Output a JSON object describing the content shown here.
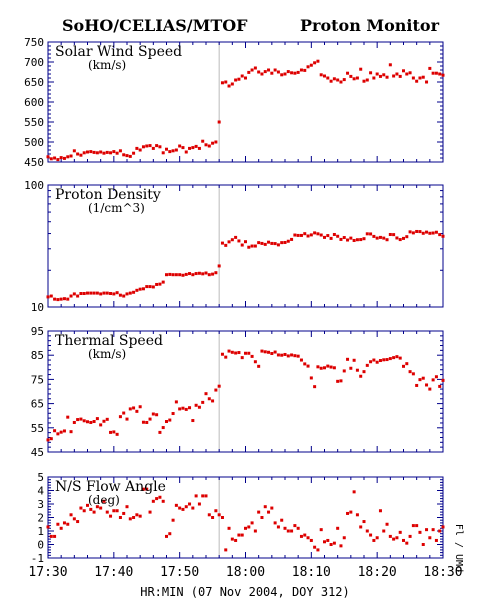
{
  "header": {
    "left_title": "SoHO/CELIAS/MTOF",
    "right_title": "Proton Monitor"
  },
  "side_label": "Fl / UMd",
  "colors": {
    "marker": "#dd0000",
    "axis": "#00008b",
    "discontinuity": "#bbbbbb",
    "text": "#000000"
  },
  "chart_data": [
    {
      "type": "scatter",
      "title": "Solar Wind Speed",
      "unit": "(km/s)",
      "ylim": [
        450,
        750
      ],
      "yticks": [
        450,
        500,
        550,
        600,
        650,
        700,
        750
      ],
      "yscale": "linear",
      "x": [
        0,
        0.5,
        1,
        1.5,
        2,
        2.5,
        3,
        3.5,
        4,
        4.5,
        5,
        5.5,
        6,
        6.5,
        7,
        7.5,
        8,
        8.5,
        9,
        9.5,
        10,
        10.5,
        11,
        11.5,
        12,
        12.5,
        13,
        13.5,
        14,
        14.5,
        15,
        15.5,
        16,
        16.5,
        17,
        17.5,
        18,
        18.5,
        19,
        19.5,
        20,
        20.5,
        21,
        21.5,
        22,
        22.5,
        23,
        23.5,
        24,
        24.5,
        25,
        25.5,
        26,
        26.5,
        27,
        27.5,
        28,
        28.5,
        29,
        29.5,
        30,
        30.5,
        31,
        31.5,
        32,
        32.5,
        33,
        33.5,
        34,
        34.5,
        35,
        35.5,
        36,
        36.5,
        37,
        37.5,
        38,
        38.5,
        39,
        39.5,
        40,
        40.5,
        41,
        41.5,
        42,
        42.5,
        43,
        43.5,
        44,
        44.5,
        45,
        45.5,
        46,
        46.5,
        47,
        47.5,
        48,
        48.5,
        49,
        49.5,
        50,
        50.5,
        51,
        51.5,
        52,
        52.5,
        53,
        53.5,
        54,
        54.5,
        55,
        55.5,
        56,
        56.5,
        57,
        57.5,
        58,
        58.5,
        59,
        59.5,
        60
      ],
      "values": [
        463,
        458,
        460,
        456,
        461,
        459,
        463,
        465,
        478,
        470,
        467,
        473,
        475,
        476,
        474,
        473,
        475,
        472,
        474,
        473,
        476,
        472,
        478,
        468,
        466,
        464,
        472,
        484,
        480,
        488,
        490,
        491,
        484,
        491,
        488,
        473,
        482,
        476,
        478,
        480,
        490,
        486,
        475,
        484,
        486,
        489,
        484,
        502,
        493,
        490,
        497,
        500,
        550,
        648,
        650,
        640,
        645,
        655,
        657,
        665,
        660,
        674,
        680,
        685,
        675,
        670,
        676,
        680,
        672,
        680,
        675,
        668,
        670,
        676,
        673,
        672,
        674,
        680,
        679,
        688,
        692,
        698,
        702,
        668,
        665,
        660,
        652,
        658,
        655,
        650,
        656,
        672,
        664,
        658,
        660,
        682,
        652,
        655,
        673,
        660,
        670,
        664,
        668,
        662,
        693,
        665,
        670,
        664,
        678,
        670,
        673,
        660,
        652,
        660,
        662,
        650,
        684,
        672,
        672,
        670,
        667
      ]
    },
    {
      "type": "scatter",
      "title": "Proton Density",
      "unit": "(1/cm^3)",
      "ylim": [
        10,
        100
      ],
      "yticks": [
        10,
        100
      ],
      "yscale": "log",
      "x": [
        0,
        0.5,
        1,
        1.5,
        2,
        2.5,
        3,
        3.5,
        4,
        4.5,
        5,
        5.5,
        6,
        6.5,
        7,
        7.5,
        8,
        8.5,
        9,
        9.5,
        10,
        10.5,
        11,
        11.5,
        12,
        12.5,
        13,
        13.5,
        14,
        14.5,
        15,
        15.5,
        16,
        16.5,
        17,
        17.5,
        18,
        18.5,
        19,
        19.5,
        20,
        20.5,
        21,
        21.5,
        22,
        22.5,
        23,
        23.5,
        24,
        24.5,
        25,
        25.5,
        26,
        26.5,
        27,
        27.5,
        28,
        28.5,
        29,
        29.5,
        30,
        30.5,
        31,
        31.5,
        32,
        32.5,
        33,
        33.5,
        34,
        34.5,
        35,
        35.5,
        36,
        36.5,
        37,
        37.5,
        38,
        38.5,
        39,
        39.5,
        40,
        40.5,
        41,
        41.5,
        42,
        42.5,
        43,
        43.5,
        44,
        44.5,
        45,
        45.5,
        46,
        46.5,
        47,
        47.5,
        48,
        48.5,
        49,
        49.5,
        50,
        50.5,
        51,
        51.5,
        52,
        52.5,
        53,
        53.5,
        54,
        54.5,
        55,
        55.5,
        56,
        56.5,
        57,
        57.5,
        58,
        58.5,
        59,
        59.5,
        60
      ],
      "values": [
        12.1,
        12.3,
        11.6,
        11.5,
        11.6,
        11.7,
        11.6,
        12.3,
        12.8,
        12.3,
        12.9,
        12.9,
        13.0,
        13.0,
        13.0,
        13.0,
        12.8,
        13.0,
        13.0,
        12.9,
        12.8,
        13.1,
        12.5,
        12.3,
        12.8,
        13.0,
        13.2,
        13.7,
        14.0,
        14.1,
        14.7,
        14.7,
        14.6,
        15.3,
        15.4,
        16.0,
        18.4,
        18.5,
        18.4,
        18.4,
        18.4,
        18.2,
        18.5,
        18.8,
        18.4,
        18.8,
        18.9,
        18.7,
        19.0,
        18.4,
        18.6,
        19.1,
        21.7,
        33.4,
        32.0,
        34.2,
        35.6,
        37.2,
        34.8,
        32.2,
        34.3,
        30.9,
        31.6,
        31.6,
        33.7,
        33.2,
        32.6,
        34.0,
        33.2,
        33.1,
        32.3,
        33.7,
        33.8,
        34.6,
        35.8,
        38.9,
        38.6,
        38.6,
        39.9,
        38.2,
        39.0,
        40.5,
        39.8,
        38.9,
        37.2,
        38.5,
        36.5,
        39.3,
        38.0,
        35.8,
        37.1,
        35.4,
        36.7,
        35.1,
        35.6,
        35.7,
        36.3,
        39.8,
        39.7,
        37.9,
        36.7,
        37.2,
        36.7,
        35.6,
        39.3,
        39.2,
        36.8,
        35.7,
        36.5,
        37.7,
        41.3,
        40.5,
        41.6,
        41.5,
        40.2,
        41.1,
        40.2,
        40.4,
        41.0,
        39.2,
        38.0
      ]
    },
    {
      "type": "scatter",
      "title": "Thermal Speed",
      "unit": "(km/s)",
      "ylim": [
        45,
        95
      ],
      "yticks": [
        45,
        55,
        65,
        75,
        85,
        95
      ],
      "yscale": "linear",
      "x": [
        0,
        0.5,
        1,
        1.5,
        2,
        2.5,
        3,
        3.5,
        4,
        4.5,
        5,
        5.5,
        6,
        6.5,
        7,
        7.5,
        8,
        8.5,
        9,
        9.5,
        10,
        10.5,
        11,
        11.5,
        12,
        12.5,
        13,
        13.5,
        14,
        14.5,
        15,
        15.5,
        16,
        16.5,
        17,
        17.5,
        18,
        18.5,
        19,
        19.5,
        20,
        20.5,
        21,
        21.5,
        22,
        22.5,
        23,
        23.5,
        24,
        24.5,
        25,
        25.5,
        26,
        26.5,
        27,
        27.5,
        28,
        28.5,
        29,
        29.5,
        30,
        30.5,
        31,
        31.5,
        32,
        32.5,
        33,
        33.5,
        34,
        34.5,
        35,
        35.5,
        36,
        36.5,
        37,
        37.5,
        38,
        38.5,
        39,
        39.5,
        40,
        40.5,
        41,
        41.5,
        42,
        42.5,
        43,
        43.5,
        44,
        44.5,
        45,
        45.5,
        46,
        46.5,
        47,
        47.5,
        48,
        48.5,
        49,
        49.5,
        50,
        50.5,
        51,
        51.5,
        52,
        52.5,
        53,
        53.5,
        54,
        54.5,
        55,
        55.5,
        56,
        56.5,
        57,
        57.5,
        58,
        58.5,
        59,
        59.5,
        60
      ],
      "values": [
        50.0,
        50.5,
        53.8,
        52.5,
        53.2,
        53.7,
        59.4,
        53.4,
        57.2,
        58.4,
        58.6,
        57.9,
        57.5,
        57.2,
        57.6,
        58.8,
        56.2,
        57.7,
        58.5,
        53.1,
        53.3,
        52.3,
        59.6,
        61.1,
        58.6,
        62.8,
        63.2,
        61.8,
        63.7,
        57.3,
        57.2,
        58.6,
        60.7,
        60.4,
        53.1,
        55.1,
        57.6,
        58.2,
        60.9,
        65.7,
        62.8,
        63.1,
        62.6,
        63.3,
        58.0,
        64.3,
        63.5,
        65.5,
        69.1,
        67.0,
        66.1,
        70.6,
        72.2,
        85.4,
        84.2,
        86.7,
        86.2,
        85.9,
        86.1,
        84.0,
        85.8,
        85.8,
        84.5,
        82.3,
        80.4,
        86.7,
        86.4,
        86.2,
        85.7,
        86.3,
        85.1,
        85.0,
        85.3,
        84.7,
        85.1,
        84.8,
        84.6,
        83.0,
        81.4,
        80.5,
        75.6,
        72.0,
        80.2,
        79.6,
        79.8,
        80.5,
        80.1,
        79.8,
        74.2,
        74.4,
        78.5,
        83.3,
        79.6,
        82.9,
        78.8,
        76.3,
        78.2,
        80.8,
        82.3,
        83.0,
        82.1,
        82.8,
        83.1,
        83.2,
        83.6,
        84.0,
        84.4,
        83.8,
        80.4,
        81.5,
        78.2,
        77.3,
        72.5,
        74.9,
        75.5,
        72.7,
        71.0,
        74.8,
        76.1,
        72.1,
        74.6
      ]
    },
    {
      "type": "scatter",
      "title": "N/S Flow Angle",
      "unit": "(deg)",
      "ylim": [
        -1,
        5
      ],
      "yticks": [
        -1,
        0,
        1,
        2,
        3,
        4,
        5
      ],
      "yscale": "linear",
      "x": [
        0,
        0.5,
        1,
        1.5,
        2,
        2.5,
        3,
        3.5,
        4,
        4.5,
        5,
        5.5,
        6,
        6.5,
        7,
        7.5,
        8,
        8.5,
        9,
        9.5,
        10,
        10.5,
        11,
        11.5,
        12,
        12.5,
        13,
        13.5,
        14,
        14.5,
        15,
        15.5,
        16,
        16.5,
        17,
        17.5,
        18,
        18.5,
        19,
        19.5,
        20,
        20.5,
        21,
        21.5,
        22,
        22.5,
        23,
        23.5,
        24,
        24.5,
        25,
        25.5,
        26,
        26.5,
        27,
        27.5,
        28,
        28.5,
        29,
        29.5,
        30,
        30.5,
        31,
        31.5,
        32,
        32.5,
        33,
        33.5,
        34,
        34.5,
        35,
        35.5,
        36,
        36.5,
        37,
        37.5,
        38,
        38.5,
        39,
        39.5,
        40,
        40.5,
        41,
        41.5,
        42,
        42.5,
        43,
        43.5,
        44,
        44.5,
        45,
        45.5,
        46,
        46.5,
        47,
        47.5,
        48,
        48.5,
        49,
        49.5,
        50,
        50.5,
        51,
        51.5,
        52,
        52.5,
        53,
        53.5,
        54,
        54.5,
        55,
        55.5,
        56,
        56.5,
        57,
        57.5,
        58,
        58.5,
        59,
        59.5,
        60
      ],
      "values": [
        1.3,
        0.6,
        0.6,
        1.5,
        1.2,
        1.6,
        1.5,
        2.2,
        1.9,
        1.7,
        2.7,
        2.5,
        2.9,
        2.6,
        2.4,
        2.8,
        2.7,
        3.2,
        2.4,
        2.1,
        2.5,
        2.5,
        2.0,
        2.3,
        2.8,
        1.9,
        2.0,
        2.2,
        2.1,
        4.1,
        4.1,
        2.4,
        3.2,
        3.4,
        3.5,
        3.2,
        0.6,
        0.8,
        1.8,
        2.9,
        2.7,
        2.6,
        2.8,
        3.0,
        2.7,
        3.6,
        3.0,
        3.6,
        3.6,
        2.2,
        2.0,
        2.5,
        2.2,
        2.0,
        -0.4,
        1.2,
        0.4,
        0.3,
        0.7,
        0.7,
        1.2,
        1.3,
        1.6,
        1.0,
        2.4,
        2.0,
        2.8,
        2.4,
        2.7,
        1.6,
        1.3,
        1.8,
        1.2,
        1.0,
        1.0,
        1.4,
        1.2,
        0.6,
        0.7,
        0.5,
        0.3,
        -0.2,
        -0.4,
        1.1,
        0.2,
        0.3,
        0.0,
        0.1,
        1.2,
        -0.1,
        0.5,
        2.3,
        2.4,
        3.9,
        2.2,
        1.3,
        1.7,
        1.0,
        0.7,
        0.3,
        0.5,
        2.5,
        1.0,
        1.5,
        0.6,
        0.4,
        0.5,
        0.9,
        0.3,
        0.1,
        0.6,
        1.4,
        1.4,
        0.9,
        0.0,
        1.1,
        0.5,
        1.1,
        0.3,
        1.0,
        1.3
      ]
    }
  ],
  "x_axis": {
    "ticks": [
      0,
      10,
      20,
      30,
      40,
      50,
      60
    ],
    "tick_labels": [
      "17:30",
      "17:40",
      "17:50",
      "18:00",
      "18:10",
      "18:20",
      "18:30"
    ],
    "label": "HR:MIN (07 Nov 2004, DOY 312)",
    "discontinuity_at": 26
  }
}
